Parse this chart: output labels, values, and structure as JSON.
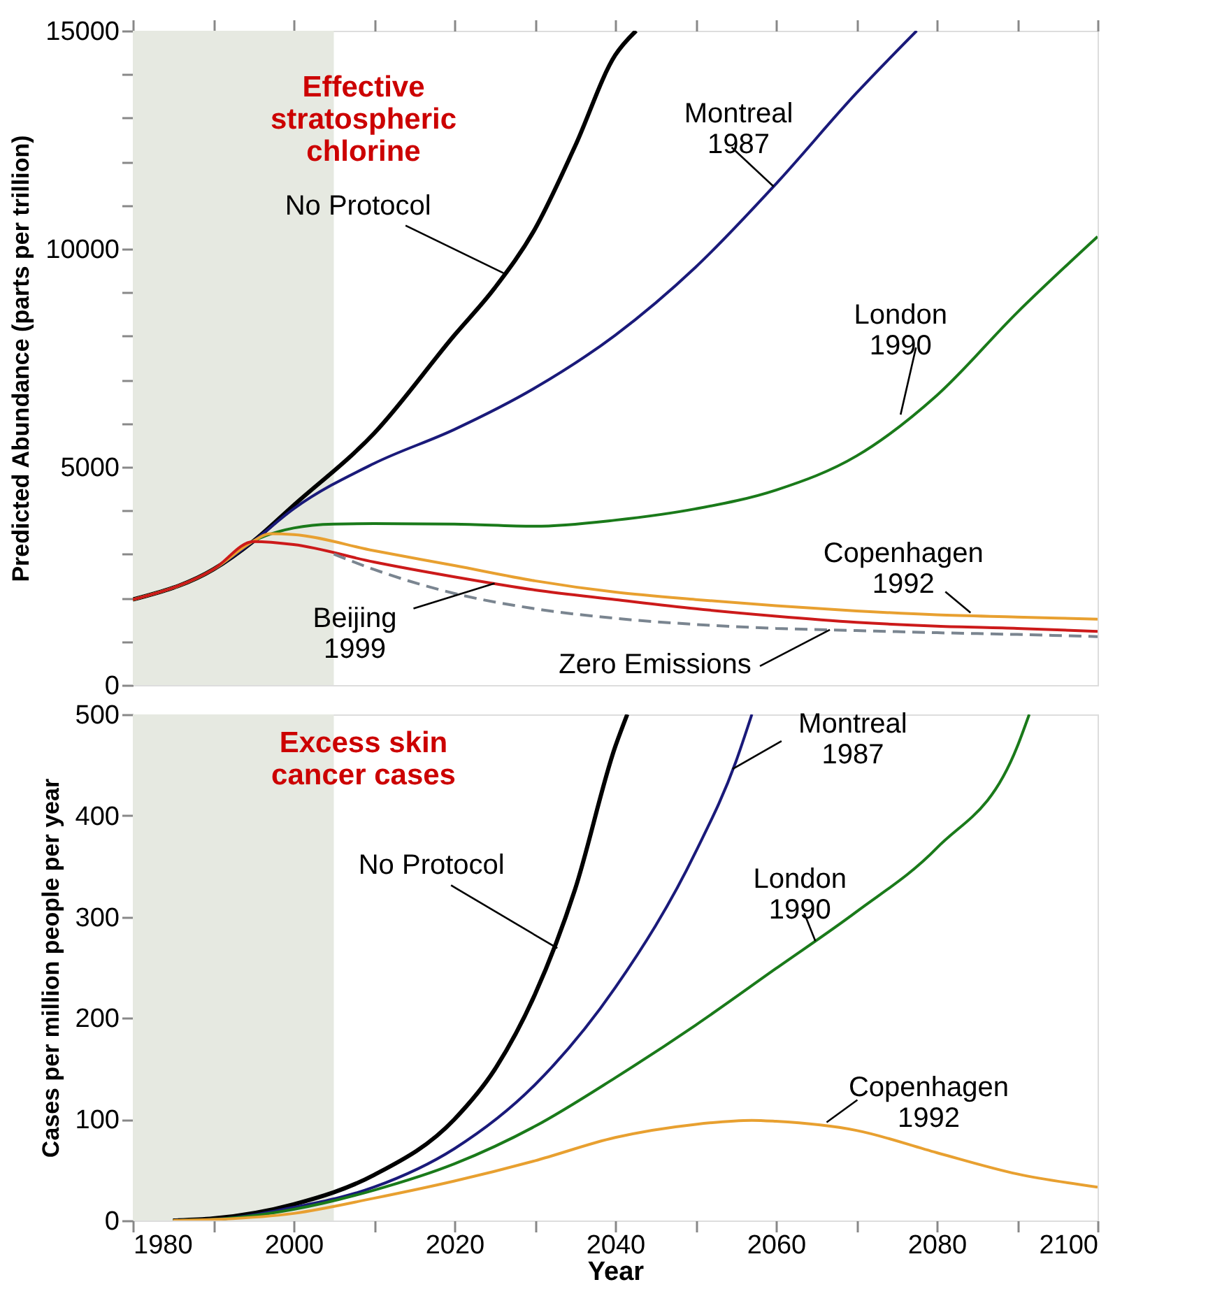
{
  "chart_data": [
    {
      "type": "line",
      "title": "Effective\nstratospheric\nchlorine",
      "ylabel": "Predicted Abundance (parts per trillion)",
      "xlim": [
        1980,
        2100
      ],
      "xticks": [
        1980,
        {
          "value": 1990,
          "label": null
        },
        2000,
        {
          "value": 2010,
          "label": null
        },
        2020,
        {
          "value": 2030,
          "label": null
        },
        2040,
        {
          "value": 2050,
          "label": null
        },
        2060,
        {
          "value": 2070,
          "label": null
        },
        2080,
        {
          "value": 2090,
          "label": null
        },
        2100
      ],
      "ylim": [
        0,
        15000
      ],
      "yticks": [
        0,
        {
          "value": 1000,
          "label": null
        },
        {
          "value": 2000,
          "label": null
        },
        {
          "value": 3000,
          "label": null
        },
        {
          "value": 4000,
          "label": null
        },
        5000,
        {
          "value": 6000,
          "label": null
        },
        {
          "value": 7000,
          "label": null
        },
        {
          "value": 8000,
          "label": null
        },
        {
          "value": 9000,
          "label": null
        },
        10000,
        {
          "value": 11000,
          "label": null
        },
        {
          "value": 12000,
          "label": null
        },
        {
          "value": 13000,
          "label": null
        },
        {
          "value": 14000,
          "label": null
        },
        15000
      ],
      "tick_labels": "y",
      "grid": false,
      "line_style": "solid",
      "bands": [
        {
          "axis": "x",
          "from": 1980,
          "to": 2005,
          "color": "#e6e9e1"
        }
      ],
      "series": [
        {
          "color": "#000000",
          "x": [
            1980,
            1990,
            1995,
            2000,
            2010,
            2020,
            2025,
            2030,
            2035,
            2040,
            2042.6
          ],
          "values": [
            1960,
            2650,
            3300,
            4120,
            5770,
            8020,
            9100,
            10450,
            12350,
            14440,
            15000
          ]
        },
        {
          "color": "#1a1a7a",
          "x": [
            1980,
            1990,
            1995,
            2000,
            2010,
            2020,
            2030,
            2040,
            2050,
            2060,
            2070,
            2077.5
          ],
          "values": [
            1960,
            2650,
            3300,
            4040,
            5080,
            5860,
            6810,
            8020,
            9580,
            11490,
            13570,
            15000
          ]
        },
        {
          "color": "#1a7a1a",
          "x": [
            1980,
            1990,
            1995,
            2000,
            2005,
            2010,
            2020,
            2030,
            2040,
            2050,
            2060,
            2070,
            2080,
            2090,
            2100
          ],
          "values": [
            1960,
            2650,
            3300,
            3600,
            3690,
            3700,
            3690,
            3640,
            3780,
            4040,
            4470,
            5250,
            6640,
            8540,
            10280
          ]
        },
        {
          "color": "#e8a030",
          "x": [
            1980,
            1990,
            1995,
            1997,
            2000,
            2010,
            2020,
            2030,
            2040,
            2050,
            2060,
            2070,
            2080,
            2090,
            2100
          ],
          "values": [
            1960,
            2650,
            3300,
            3470,
            3450,
            3080,
            2740,
            2390,
            2130,
            1960,
            1820,
            1700,
            1610,
            1560,
            1510
          ]
        },
        {
          "color": "#cc1a1a",
          "x": [
            1980,
            1990,
            1995,
            2000,
            2010,
            2020,
            2030,
            2040,
            2050,
            2060,
            2070,
            2080,
            2090,
            2100
          ],
          "values": [
            1960,
            2650,
            3290,
            3220,
            2820,
            2480,
            2180,
            1960,
            1750,
            1580,
            1440,
            1350,
            1300,
            1230
          ]
        },
        {
          "color": "#7a8590",
          "line_style": "dashed",
          "x": [
            2005,
            2010,
            2020,
            2030,
            2040,
            2050,
            2060,
            2070,
            2080,
            2090,
            2100
          ],
          "values": [
            3000,
            2650,
            2100,
            1750,
            1530,
            1390,
            1300,
            1250,
            1200,
            1160,
            1110
          ]
        }
      ],
      "annotations": [
        {
          "text": "No Protocol",
          "x": 2026.1,
          "y": 9445
        },
        {
          "text": "Montreal\n1987",
          "x": 2059.7,
          "y": 11430
        },
        {
          "text": "London\n1990",
          "x": 2075.5,
          "y": 6200
        },
        {
          "text": "Copenhagen\n1992",
          "x": 2084.2,
          "y": 1660
        },
        {
          "text": "Beijing\n1999",
          "x": 2025,
          "y": 2330
        },
        {
          "text": "Zero Emissions",
          "x": 2066.7,
          "y": 1267
        }
      ]
    },
    {
      "type": "line",
      "title": "Excess skin\ncancer cases",
      "xlabel": "Year",
      "ylabel": "Cases per million people per year",
      "xlim": [
        1980,
        2100
      ],
      "xticks": [
        1980,
        {
          "value": 1990,
          "label": null
        },
        2000,
        {
          "value": 2010,
          "label": null
        },
        2020,
        {
          "value": 2030,
          "label": null
        },
        2040,
        {
          "value": 2050,
          "label": null
        },
        2060,
        {
          "value": 2070,
          "label": null
        },
        2080,
        {
          "value": 2090,
          "label": null
        },
        2100
      ],
      "ylim": [
        0,
        500
      ],
      "yticks": [
        0,
        100,
        200,
        300,
        400,
        500
      ],
      "grid": false,
      "line_style": "solid",
      "bands": [
        {
          "axis": "x",
          "from": 1980,
          "to": 2005,
          "color": "#e6e9e1"
        }
      ],
      "series": [
        {
          "color": "#000000",
          "x": [
            1985,
            1990,
            2000,
            2010,
            2020,
            2025,
            2030,
            2035,
            2040,
            2041.5
          ],
          "values": [
            0,
            2,
            16,
            45,
            100,
            149,
            223,
            327,
            468,
            500
          ]
        },
        {
          "color": "#1a1a7a",
          "x": [
            1985,
            1990,
            2000,
            2010,
            2020,
            2030,
            2040,
            2050,
            2055,
            2057
          ],
          "values": [
            0,
            1,
            13,
            33,
            71,
            134,
            230,
            364,
            453,
            500
          ]
        },
        {
          "color": "#1a7a1a",
          "x": [
            1985,
            1990,
            2000,
            2010,
            2020,
            2030,
            2040,
            2050,
            2060,
            2070,
            2080,
            2090,
            2091.5
          ],
          "values": [
            0,
            1,
            11,
            30,
            56,
            93,
            141,
            193,
            249,
            305,
            368,
            468,
            500
          ]
        },
        {
          "color": "#e8a030",
          "x": [
            1985,
            1990,
            2000,
            2010,
            2020,
            2030,
            2040,
            2050,
            2057,
            2060,
            2070,
            2080,
            2090,
            2100
          ],
          "values": [
            0,
            1,
            7,
            22,
            39,
            59,
            82,
            95,
            99,
            98,
            89,
            67,
            46,
            33
          ]
        }
      ],
      "annotations": [
        {
          "text": "No Protocol",
          "x": 2032.8,
          "y": 269
        },
        {
          "text": "Montreal\n1987",
          "x": 2054.6,
          "y": 446
        },
        {
          "text": "London\n1990",
          "x": 2064.9,
          "y": 276
        },
        {
          "text": "Copenhagen\n1992",
          "x": 2066.3,
          "y": 97
        }
      ]
    }
  ]
}
